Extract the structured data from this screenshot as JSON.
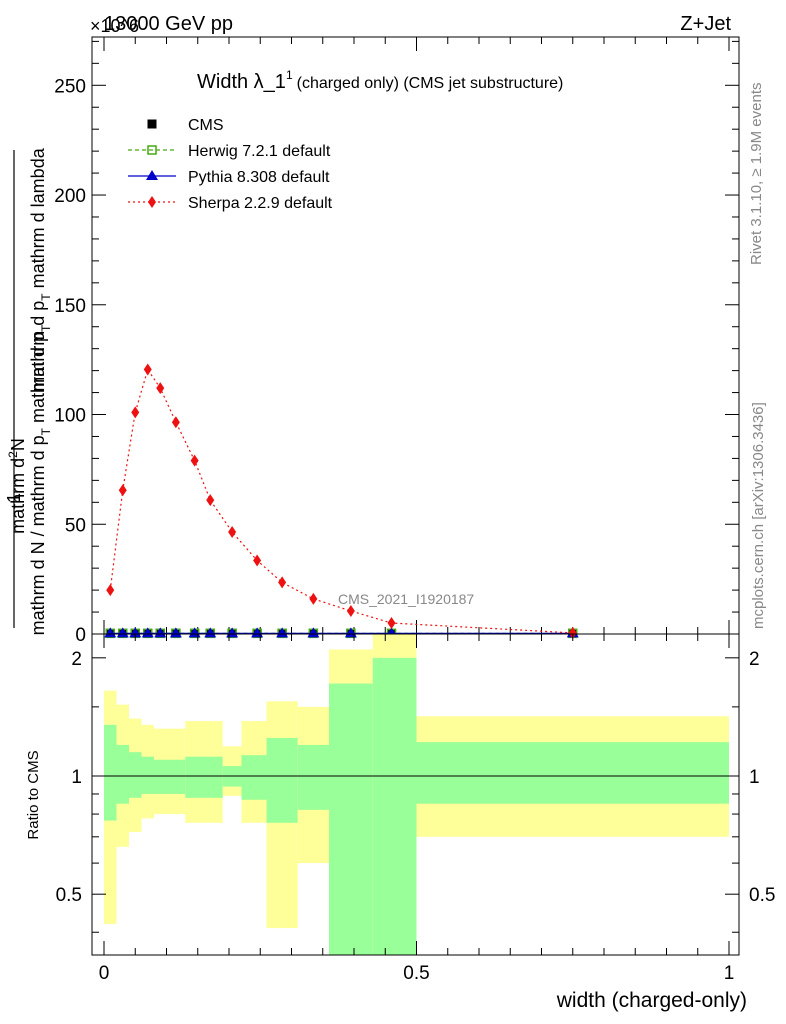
{
  "header": {
    "energy": "13000 GeV pp",
    "process": "Z+Jet",
    "exponent": "×10^6"
  },
  "side_labels": {
    "rivet": "Rivet 3.1.10, ≥ 1.9M events",
    "mcplots": "mcplots.cern.ch [arXiv:1306.3436]"
  },
  "chart_data": [
    {
      "type": "line",
      "title_main": "Width λ_1",
      "title_sup": "1",
      "title_rest": "(charged only) (CMS jet substructure)",
      "watermark": "CMS_2021_I1920187",
      "ylabel_num": "mathrm d²N",
      "ylabel_num_prefix": "mathrm d",
      "ylabel_num_sup": "2",
      "ylabel_num_suffix": "N",
      "ylabel_den_a": "mathrm d p",
      "ylabel_den_sub": "T",
      "ylabel_den_b": " mathrm d lambda",
      "ylabel_frac_num": "1",
      "ylabel_frac_den_a": "mathrm d N / mathrm d p",
      "ylabel_frac_den_sub": "T",
      "ylabel_frac_den_b": " mathrm d p",
      "ylabel_frac_den_sub2": "T",
      "xlim": [
        0,
        1
      ],
      "ylim": [
        0,
        272
      ],
      "yticks": [
        0,
        50,
        100,
        150,
        200,
        250
      ],
      "ytick_labels": [
        "0",
        "50",
        "100",
        "150",
        "200",
        "250"
      ],
      "legend_position": "top-left",
      "series": [
        {
          "name": "CMS",
          "color": "#000000",
          "marker": "square",
          "x": [
            0.01,
            0.03,
            0.05,
            0.07,
            0.09,
            0.115,
            0.145,
            0.17,
            0.205,
            0.245,
            0.285,
            0.335,
            0.395,
            0.46,
            0.75
          ],
          "y": [
            0.3,
            0.3,
            0.3,
            0.3,
            0.3,
            0.3,
            0.3,
            0.3,
            0.3,
            0.3,
            0.3,
            0.3,
            0.3,
            0.3,
            0.3
          ]
        },
        {
          "name": "Herwig 7.2.1 default",
          "color": "#44aa11",
          "marker": "open-square",
          "x": [
            0.01,
            0.03,
            0.05,
            0.07,
            0.09,
            0.115,
            0.145,
            0.17,
            0.205,
            0.245,
            0.285,
            0.335,
            0.395,
            0.46,
            0.75
          ],
          "y": [
            0.3,
            0.3,
            0.3,
            0.3,
            0.3,
            0.3,
            0.3,
            0.3,
            0.3,
            0.3,
            0.3,
            0.3,
            0.3,
            0.3,
            0.3
          ]
        },
        {
          "name": "Pythia 8.308 default",
          "color": "#0000cc",
          "marker": "triangle",
          "x": [
            0.01,
            0.03,
            0.05,
            0.07,
            0.09,
            0.115,
            0.145,
            0.17,
            0.205,
            0.245,
            0.285,
            0.335,
            0.395,
            0.46,
            0.75
          ],
          "y": [
            0.3,
            0.3,
            0.3,
            0.3,
            0.3,
            0.3,
            0.3,
            0.3,
            0.3,
            0.3,
            0.3,
            0.3,
            0.3,
            0.3,
            0.3
          ]
        },
        {
          "name": "Sherpa 2.2.9 default",
          "color": "#ee1111",
          "marker": "diamond",
          "x": [
            0.01,
            0.03,
            0.05,
            0.07,
            0.09,
            0.115,
            0.145,
            0.17,
            0.205,
            0.245,
            0.285,
            0.335,
            0.395,
            0.46,
            0.75
          ],
          "y": [
            20,
            65.5,
            101,
            120.5,
            112,
            96.5,
            79,
            61,
            46.5,
            33.5,
            23.5,
            16,
            10.5,
            5,
            0.5
          ]
        }
      ]
    },
    {
      "type": "area",
      "ylabel": "Ratio to CMS",
      "xlabel": "width (charged-only)",
      "xlim": [
        0,
        1
      ],
      "ylim": [
        0.35,
        2.3
      ],
      "xticks": [
        0,
        0.5,
        1
      ],
      "xtick_labels": [
        "0",
        "0.5",
        "1"
      ],
      "yticks": [
        0.5,
        1,
        2
      ],
      "ytick_labels": [
        "0.5",
        "1",
        "2"
      ],
      "reference": 1,
      "bins": [
        {
          "x0": 0.0,
          "x1": 0.02,
          "y_lo": 0.42,
          "y_hi": 1.65,
          "g_lo": 0.77,
          "g_hi": 1.35
        },
        {
          "x0": 0.02,
          "x1": 0.04,
          "y_lo": 0.66,
          "y_hi": 1.52,
          "g_lo": 0.85,
          "g_hi": 1.2
        },
        {
          "x0": 0.04,
          "x1": 0.06,
          "y_lo": 0.72,
          "y_hi": 1.4,
          "g_lo": 0.88,
          "g_hi": 1.15
        },
        {
          "x0": 0.06,
          "x1": 0.08,
          "y_lo": 0.78,
          "y_hi": 1.35,
          "g_lo": 0.9,
          "g_hi": 1.12
        },
        {
          "x0": 0.08,
          "x1": 0.1,
          "y_lo": 0.8,
          "y_hi": 1.32,
          "g_lo": 0.9,
          "g_hi": 1.1
        },
        {
          "x0": 0.1,
          "x1": 0.13,
          "y_lo": 0.8,
          "y_hi": 1.32,
          "g_lo": 0.9,
          "g_hi": 1.1
        },
        {
          "x0": 0.13,
          "x1": 0.16,
          "y_lo": 0.76,
          "y_hi": 1.38,
          "g_lo": 0.88,
          "g_hi": 1.12
        },
        {
          "x0": 0.16,
          "x1": 0.19,
          "y_lo": 0.76,
          "y_hi": 1.38,
          "g_lo": 0.88,
          "g_hi": 1.12
        },
        {
          "x0": 0.19,
          "x1": 0.22,
          "y_lo": 0.89,
          "y_hi": 1.19,
          "g_lo": 0.94,
          "g_hi": 1.06
        },
        {
          "x0": 0.22,
          "x1": 0.26,
          "y_lo": 0.76,
          "y_hi": 1.38,
          "g_lo": 0.87,
          "g_hi": 1.13
        },
        {
          "x0": 0.26,
          "x1": 0.31,
          "y_lo": 0.41,
          "y_hi": 1.55,
          "g_lo": 0.76,
          "g_hi": 1.25
        },
        {
          "x0": 0.31,
          "x1": 0.36,
          "y_lo": 0.6,
          "y_hi": 1.5,
          "g_lo": 0.82,
          "g_hi": 1.2
        },
        {
          "x0": 0.36,
          "x1": 0.43,
          "y_lo": 0.35,
          "y_hi": 2.1,
          "g_lo": 0.35,
          "g_hi": 1.72
        },
        {
          "x0": 0.43,
          "x1": 0.5,
          "y_lo": 0.35,
          "y_hi": 2.3,
          "g_lo": 0.35,
          "g_hi": 2.0
        },
        {
          "x0": 0.5,
          "x1": 1.0,
          "y_lo": 0.7,
          "y_hi": 1.42,
          "g_lo": 0.85,
          "g_hi": 1.22
        }
      ]
    }
  ],
  "colors": {
    "band_outer": "#ffff99",
    "band_inner": "#99ff99",
    "reference_line": "#000000"
  }
}
